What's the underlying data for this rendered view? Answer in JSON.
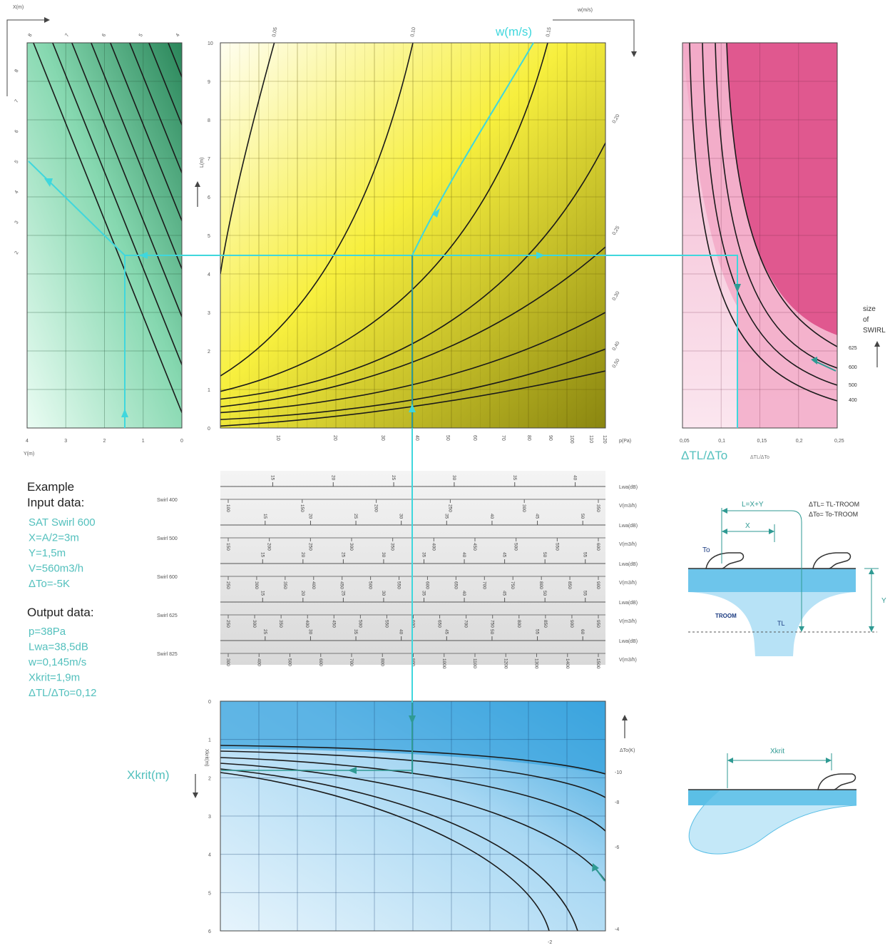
{
  "colors": {
    "green_light": "#e9fbf2",
    "green_dark": "#2c8a5c",
    "yellow_light": "#fffde6",
    "yellow_dark": "#8c8a10",
    "pink_light": "#f8dbe8",
    "pink_dark": "#e0508c",
    "blue_light": "#d8eefb",
    "blue_dark": "#3aa6e0",
    "cyan_path": "#3fd7dd",
    "teal_path": "#2f9a93",
    "swirl_teal": "#53c0bd"
  },
  "labels": {
    "x_axis": "X(m)",
    "w_axis": "w(m/s)",
    "w_big": "w(m/s)",
    "y_axis": "Y(m)",
    "l_axis": "L(m)",
    "p_axis": "p(Pa)",
    "dt_ratio": "ΔTL/ΔTo",
    "dt_ratio_small": "ΔTL/ΔTo",
    "xkrit_big": "Xkrit(m)",
    "xkrit_small": "Xkrit(m)",
    "dto_axis": "ΔTo(K)",
    "swirl_title": [
      "size",
      "of",
      "SWIRL"
    ]
  },
  "green_ticks_x": [
    "8",
    "7",
    "6",
    "5",
    "4"
  ],
  "green_ticks_l": [
    "8",
    "7",
    "6",
    "5",
    "4",
    "3",
    "2"
  ],
  "green_ticks_y": [
    "4",
    "3",
    "2",
    "1",
    "0"
  ],
  "chart_data": [
    {
      "type": "line",
      "name": "green",
      "xlim": [
        4,
        0
      ],
      "ylim": [
        0,
        10
      ],
      "y_ticks": [
        "4",
        "3",
        "2",
        "1",
        "0"
      ]
    },
    {
      "type": "line",
      "name": "yellow",
      "ylabel": "L(m)",
      "xlabel": "p(Pa)",
      "ylim": [
        0,
        10
      ],
      "y_ticks": [
        "0",
        "1",
        "2",
        "3",
        "4",
        "5",
        "6",
        "7",
        "8",
        "9",
        "10"
      ],
      "x_ticks": [
        "10",
        "20",
        "30",
        "40",
        "50",
        "60",
        "70",
        "80",
        "90",
        "100",
        "110",
        "120"
      ],
      "w_labels_top": [
        "0,05",
        "0,10",
        "0,15"
      ],
      "w_labels_right": [
        {
          "t": "0,20",
          "y": 7.9
        },
        {
          "t": "0,25",
          "y": 5.0
        },
        {
          "t": "0,30",
          "y": 3.3
        },
        {
          "t": "0,40",
          "y": 2.0
        },
        {
          "t": "0,50",
          "y": 1.55
        }
      ]
    },
    {
      "type": "line",
      "name": "pink",
      "xlabel": "ΔTL/ΔTo",
      "x_ticks": [
        "0,05",
        "0,1",
        "0,15",
        "0,2",
        "0,25"
      ],
      "series": [
        {
          "name": "625"
        },
        {
          "name": "600"
        },
        {
          "name": "500"
        },
        {
          "name": "400"
        }
      ]
    },
    {
      "type": "table",
      "name": "swirl-scales",
      "rows": [
        {
          "swirl": "Swirl 400",
          "lwa_unit": "Lwa(dB)",
          "v_unit": "V(m3/h)",
          "lwa": [
            "15",
            "20",
            "25",
            "30",
            "35",
            "40"
          ],
          "v": [
            "100",
            "150",
            "200",
            "250",
            "300",
            "350"
          ]
        },
        {
          "swirl": "Swirl 500",
          "lwa_unit": "Lwa(dB)",
          "v_unit": "V(m3/h)",
          "lwa": [
            "15",
            "20",
            "25",
            "30",
            "35",
            "40",
            "45",
            "50"
          ],
          "v": [
            "150",
            "200",
            "250",
            "300",
            "350",
            "400",
            "450",
            "500",
            "550",
            "600"
          ]
        },
        {
          "swirl": "Swirl 600",
          "lwa_unit": "Lwa(dB)",
          "v_unit": "V(m3/h)",
          "lwa": [
            "15",
            "20",
            "25",
            "30",
            "35",
            "40",
            "45",
            "50",
            "55"
          ],
          "v": [
            "250",
            "300",
            "350",
            "400",
            "450",
            "500",
            "550",
            "600",
            "650",
            "700",
            "750",
            "800",
            "850",
            "900"
          ]
        },
        {
          "swirl": "Swirl 625",
          "lwa_unit": "Lwa(dB)",
          "v_unit": "V(m3/h)",
          "lwa": [
            "15",
            "20",
            "25",
            "30",
            "35",
            "40",
            "45",
            "50",
            "55"
          ],
          "v": [
            "250",
            "300",
            "350",
            "400",
            "450",
            "500",
            "550",
            "600",
            "650",
            "700",
            "750",
            "800",
            "850",
            "900",
            "950"
          ]
        },
        {
          "swirl": "Swirl 825",
          "lwa_unit": "Lwa(dB)",
          "v_unit": "V(m3/h)",
          "lwa": [
            "25",
            "30",
            "35",
            "40",
            "45",
            "50",
            "55",
            "60"
          ],
          "v": [
            "300",
            "400",
            "500",
            "600",
            "700",
            "800",
            "900",
            "1000",
            "1100",
            "1200",
            "1300",
            "1400",
            "1500"
          ]
        }
      ]
    },
    {
      "type": "line",
      "name": "blue",
      "ylabel": "Xkrit(m)",
      "ylim": [
        0,
        6
      ],
      "y_ticks": [
        "0",
        "1",
        "2",
        "3",
        "4",
        "5",
        "6"
      ],
      "right_ticks": [
        "-10",
        "-8",
        "-6",
        "-4"
      ],
      "bottom_label": "-2",
      "right_axis_label": "ΔTo(K)"
    }
  ],
  "example": {
    "title": "Example",
    "input_title": "Input data:",
    "inputs": [
      "SAT Swirl 600",
      "X=A/2=3m",
      "Y=1,5m",
      "V=560m3/h",
      "ΔTo=-5K"
    ],
    "output_title": "Output data:",
    "outputs": [
      "p=38Pa",
      "Lwa=38,5dB",
      "w=0,145m/s",
      "Xkrit=1,9m",
      "ΔTL/ΔTo=0,12"
    ]
  },
  "diagram1": {
    "l_eq": "L=X+Y",
    "x": "X",
    "y": "Y",
    "to": "To",
    "troom": "TROOM",
    "tl": "TL",
    "eq1": "ΔTL= TL-TROOM",
    "eq2": "ΔTo= To-TROOM"
  },
  "diagram2": {
    "xkrit": "Xkrit"
  }
}
